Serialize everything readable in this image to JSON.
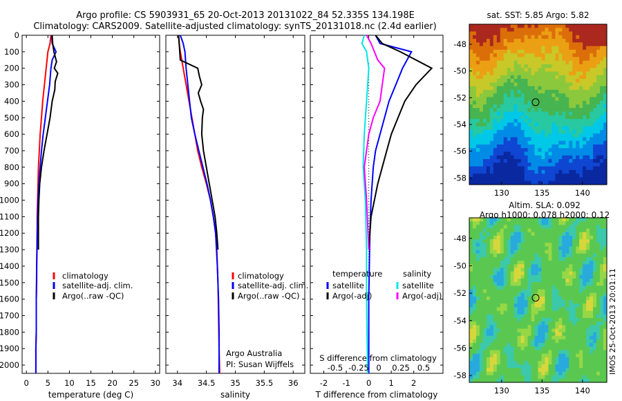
{
  "header": {
    "line1": "Argo profile: CS 5903931_65 20-Oct-2013 20131022_84 52.335S 134.198E",
    "line2": "Climatology: CARS2009. Satellite-adjusted climatology: synTS_20131018.nc (2.4d earlier)"
  },
  "colors": {
    "red": "#ff0000",
    "blue": "#0000ff",
    "black": "#000000",
    "cyan": "#00e5e5",
    "magenta": "#ff00ff"
  },
  "chart_data": [
    {
      "id": "temperature",
      "type": "line",
      "xlabel": "temperature (deg C)",
      "ylabel": "",
      "xlim": [
        -1,
        31
      ],
      "ylim": [
        2050,
        0
      ],
      "xticks": [
        "0",
        "5",
        "10",
        "15",
        "20",
        "25",
        "30"
      ],
      "xtick_values": [
        0,
        5,
        10,
        15,
        20,
        25,
        30
      ],
      "yticks": [
        "0",
        "100",
        "200",
        "300",
        "400",
        "500",
        "600",
        "700",
        "800",
        "900",
        "1000",
        "1100",
        "1200",
        "1300",
        "1400",
        "1500",
        "1600",
        "1700",
        "1800",
        "1900",
        "2000"
      ],
      "ytick_values": [
        0,
        100,
        200,
        300,
        400,
        500,
        600,
        700,
        800,
        900,
        1000,
        1100,
        1200,
        1300,
        1400,
        1500,
        1600,
        1700,
        1800,
        1900,
        2000
      ],
      "legend": [
        "climatology",
        "satellite-adj. clim.",
        "Argo(..raw -QC)"
      ],
      "series": [
        {
          "name": "climatology",
          "color": "red",
          "x": [
            5.7,
            5.5,
            5.0,
            4.6,
            4.2,
            3.8,
            3.5,
            3.2,
            3.0,
            2.8,
            2.7,
            2.6,
            2.5,
            2.5,
            2.4,
            2.4,
            2.3,
            2.3,
            2.3,
            2.2,
            2.2
          ],
          "y": [
            0,
            50,
            100,
            200,
            300,
            400,
            500,
            600,
            700,
            800,
            900,
            1000,
            1100,
            1200,
            1400,
            1500,
            1600,
            1700,
            1800,
            1900,
            2050
          ]
        },
        {
          "name": "satellite-adj. clim.",
          "color": "blue",
          "x": [
            5.9,
            6.0,
            6.9,
            6.0,
            5.7,
            5.4,
            4.9,
            4.4,
            3.9,
            3.5,
            3.2,
            2.9,
            2.7,
            2.6,
            2.5,
            2.4,
            2.3,
            2.3,
            2.2,
            2.2,
            2.2
          ],
          "y": [
            0,
            50,
            100,
            150,
            200,
            300,
            400,
            500,
            600,
            700,
            800,
            900,
            1000,
            1100,
            1200,
            1400,
            1600,
            1800,
            1900,
            2000,
            2050
          ]
        },
        {
          "name": "Argo(..raw -QC)",
          "color": "black",
          "x": [
            6.0,
            6.1,
            6.4,
            7.0,
            6.5,
            7.3,
            6.7,
            6.6,
            6.0,
            5.5,
            4.8,
            4.1,
            3.5,
            3.1,
            2.9,
            2.8,
            2.8
          ],
          "y": [
            0,
            50,
            100,
            160,
            200,
            230,
            280,
            330,
            400,
            500,
            600,
            700,
            800,
            900,
            1000,
            1100,
            1300
          ]
        }
      ]
    },
    {
      "id": "salinity",
      "type": "line",
      "xlabel": "salinity",
      "xlim": [
        33.8,
        36.2
      ],
      "ylim": [
        2050,
        0
      ],
      "xticks": [
        "34",
        "34.5",
        "35",
        "35.5",
        "36"
      ],
      "xtick_values": [
        34,
        34.5,
        35,
        35.5,
        36
      ],
      "legend": [
        "climatology",
        "satellite-adj. clim.",
        "Argo(..raw -QC)"
      ],
      "annotations": [
        "Argo Australia",
        "PI: Susan Wijffels"
      ],
      "series": [
        {
          "name": "climatology",
          "color": "red",
          "x": [
            34.02,
            34.03,
            34.05,
            34.1,
            34.15,
            34.2,
            34.25,
            34.3,
            34.35,
            34.42,
            34.5,
            34.57,
            34.62,
            34.66,
            34.68,
            34.7,
            34.71,
            34.72,
            34.73
          ],
          "y": [
            0,
            50,
            100,
            200,
            300,
            400,
            500,
            600,
            700,
            800,
            900,
            1000,
            1100,
            1200,
            1300,
            1500,
            1700,
            1900,
            2050
          ]
        },
        {
          "name": "satellite-adj. clim.",
          "color": "blue",
          "x": [
            34.05,
            34.1,
            34.13,
            34.15,
            34.18,
            34.21,
            34.24,
            34.3,
            34.37,
            34.44,
            34.51,
            34.57,
            34.62,
            34.66,
            34.69,
            34.71,
            34.72,
            34.72
          ],
          "y": [
            0,
            50,
            100,
            200,
            300,
            400,
            500,
            600,
            700,
            800,
            900,
            1000,
            1100,
            1200,
            1400,
            1600,
            1800,
            2050
          ]
        },
        {
          "name": "Argo(..raw -QC)",
          "color": "black",
          "x": [
            34.02,
            34.03,
            34.05,
            34.35,
            34.38,
            34.42,
            34.36,
            34.4,
            34.45,
            34.43,
            34.42,
            34.45,
            34.5,
            34.55,
            34.6,
            34.65,
            34.68,
            34.7
          ],
          "y": [
            0,
            50,
            150,
            200,
            250,
            300,
            350,
            400,
            450,
            500,
            600,
            700,
            800,
            900,
            1000,
            1100,
            1200,
            1300
          ]
        }
      ]
    },
    {
      "id": "difference",
      "type": "line",
      "xlabel": "T difference from climatology",
      "xlabel2": "S difference from climatology",
      "xlim": [
        -2.6,
        3.3
      ],
      "ylim": [
        2050,
        0
      ],
      "xticks": [
        "-2",
        "-1",
        "0",
        "1",
        "2"
      ],
      "xtick_values": [
        -2,
        -1,
        0,
        1,
        2
      ],
      "xticks2": [
        "-0.5",
        "-0.25",
        "0",
        "0.25",
        "0.5"
      ],
      "legend_temperature_title": "temperature",
      "legend_salinity_title": "salinity",
      "legend_temperature": [
        "satellite",
        "Argo(-adj)"
      ],
      "legend_salinity": [
        "satellite",
        "Argo(-adj)"
      ],
      "series": [
        {
          "name": "T satellite",
          "color": "blue",
          "x": [
            0.3,
            0.5,
            1.9,
            1.5,
            1.2,
            0.9,
            0.7,
            0.5,
            0.3,
            0.2,
            0.1,
            0.05,
            0.0,
            0.0
          ],
          "y": [
            0,
            50,
            100,
            200,
            300,
            400,
            500,
            600,
            700,
            800,
            1000,
            1200,
            1600,
            2050
          ]
        },
        {
          "name": "T Argo(-adj)",
          "color": "black",
          "x": [
            0.3,
            0.6,
            1.4,
            2.8,
            2.1,
            1.6,
            1.3,
            1.0,
            0.8,
            0.6,
            0.4,
            0.1,
            0.0
          ],
          "y": [
            0,
            50,
            100,
            200,
            300,
            400,
            500,
            600,
            700,
            800,
            900,
            1100,
            1300
          ]
        },
        {
          "name": "S satellite",
          "color": "cyan",
          "x": [
            -0.2,
            -0.3,
            -0.1,
            0.0,
            -0.05,
            -0.1,
            -0.15,
            -0.2,
            -0.25,
            -0.15,
            -0.1,
            -0.1,
            -0.05
          ],
          "y": [
            0,
            50,
            100,
            200,
            300,
            400,
            500,
            600,
            800,
            1000,
            1300,
            1600,
            2050
          ]
        },
        {
          "name": "S Argo(-adj)",
          "color": "magenta",
          "x": [
            -0.1,
            0.1,
            0.4,
            0.7,
            0.6,
            0.5,
            0.2,
            0.0,
            -0.2,
            -0.1,
            0.0
          ],
          "y": [
            0,
            50,
            150,
            200,
            300,
            400,
            500,
            600,
            800,
            1000,
            1300
          ]
        }
      ]
    },
    {
      "id": "sst_map",
      "type": "heatmap",
      "title": "sat. SST: 5.85 Argo: 5.82",
      "xlim": [
        126,
        143
      ],
      "ylim": [
        -58.5,
        -46.5
      ],
      "xticks": [
        "130",
        "135",
        "140"
      ],
      "xtick_values": [
        130,
        135,
        140
      ],
      "yticks": [
        "-48",
        "-50",
        "-52",
        "-54",
        "-56",
        "-58"
      ],
      "ytick_values": [
        -48,
        -50,
        -52,
        -54,
        -56,
        -58
      ],
      "marker": {
        "lon": 134.198,
        "lat": -52.335
      }
    },
    {
      "id": "sla_map",
      "type": "heatmap",
      "title": "Altim. SLA: 0.092",
      "subtitle": "Argo h1000: 0.078 h2000: 0.12",
      "xlim": [
        126,
        143
      ],
      "ylim": [
        -58.5,
        -46.5
      ],
      "xticks": [
        "130",
        "135",
        "140"
      ],
      "xtick_values": [
        130,
        135,
        140
      ],
      "yticks": [
        "-48",
        "-50",
        "-52",
        "-54",
        "-56",
        "-58"
      ],
      "ytick_values": [
        -48,
        -50,
        -52,
        -54,
        -56,
        -58
      ],
      "marker": {
        "lon": 134.198,
        "lat": -52.335
      },
      "side_label": "IMOS 25-Oct-2013 20:01:11"
    }
  ]
}
